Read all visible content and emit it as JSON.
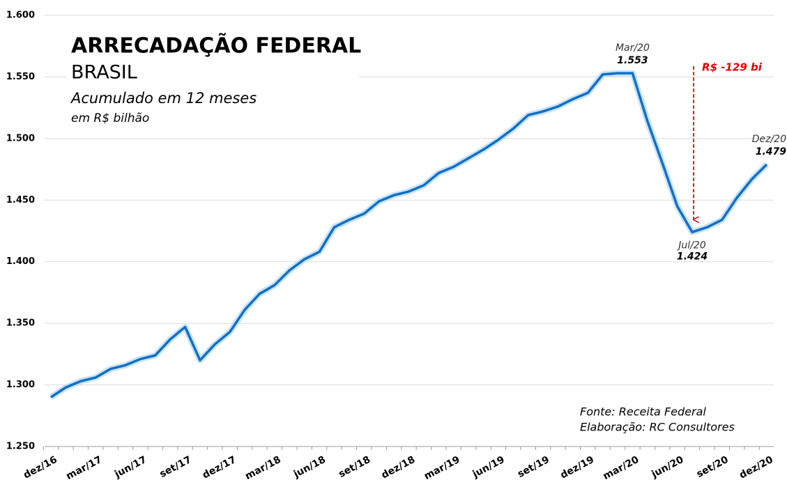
{
  "chart_data": {
    "type": "line",
    "title": "ARRECADAÇÃO FEDERAL",
    "subtitle": "BRASIL",
    "subtitle2": "Acumulado em 12 meses",
    "unit_label": "em R$ bilhão",
    "source": "Fonte: Receita Federal",
    "credit": "Elaboração: RC Consultores",
    "annotation": "R$ -129 bi",
    "annotation_color": "#e00000",
    "categories": [
      "dez/16",
      null,
      null,
      "mar/17",
      null,
      null,
      "jun/17",
      null,
      null,
      "set/17",
      null,
      null,
      "dez/17",
      null,
      null,
      "mar/18",
      null,
      null,
      "jun/18",
      null,
      null,
      "set/18",
      null,
      null,
      "dez/18",
      null,
      null,
      "mar/19",
      null,
      null,
      "jun/19",
      null,
      null,
      "set/19",
      null,
      null,
      "dez/19",
      null,
      null,
      "mar/20",
      null,
      null,
      "jun/20",
      null,
      null,
      "set/20",
      null,
      null,
      "dez/20"
    ],
    "series": [
      {
        "name": null,
        "color": "#0f6fc6",
        "values": [
          1290,
          1298,
          1303,
          1306,
          1313,
          1316,
          1321,
          1324,
          1337,
          1347,
          1320,
          1333,
          1343,
          1361,
          1374,
          1381,
          1393,
          1402,
          1408,
          1428,
          1434,
          1439,
          1449,
          1454,
          1457,
          1462,
          1472,
          1477,
          1484,
          1491,
          1499,
          1508,
          1519,
          1522,
          1526,
          1532,
          1537,
          1552,
          1553,
          1553,
          1514,
          1480,
          1445,
          1424,
          1428,
          1434,
          1452,
          1467,
          1479
        ],
        "value_labels": [
          null,
          null,
          null,
          null,
          null,
          null,
          null,
          null,
          null,
          null,
          null,
          null,
          null,
          null,
          null,
          null,
          null,
          null,
          null,
          null,
          null,
          null,
          null,
          null,
          null,
          null,
          null,
          null,
          null,
          null,
          null,
          null,
          null,
          null,
          null,
          null,
          null,
          null,
          null,
          "1.553",
          null,
          null,
          null,
          "1.424",
          null,
          null,
          null,
          null,
          "1.479"
        ],
        "point_labels": [
          null,
          null,
          null,
          null,
          null,
          null,
          null,
          null,
          null,
          null,
          null,
          null,
          null,
          null,
          null,
          null,
          null,
          null,
          null,
          null,
          null,
          null,
          null,
          null,
          null,
          null,
          null,
          null,
          null,
          null,
          null,
          null,
          null,
          null,
          null,
          null,
          null,
          null,
          null,
          "Mar/20",
          null,
          null,
          null,
          "Jul/20",
          null,
          null,
          null,
          null,
          "Dez/20"
        ]
      }
    ],
    "ylim": [
      1250,
      1600
    ],
    "yticks": [
      {
        "value": 1250,
        "label": "1.250"
      },
      {
        "value": 1300,
        "label": "1.300"
      },
      {
        "value": 1350,
        "label": "1.350"
      },
      {
        "value": 1400,
        "label": "1.400"
      },
      {
        "value": 1450,
        "label": "1.450"
      },
      {
        "value": 1500,
        "label": "1.500"
      },
      {
        "value": 1550,
        "label": "1.550"
      },
      {
        "value": 1600,
        "label": "1.600"
      }
    ],
    "grid": true
  }
}
